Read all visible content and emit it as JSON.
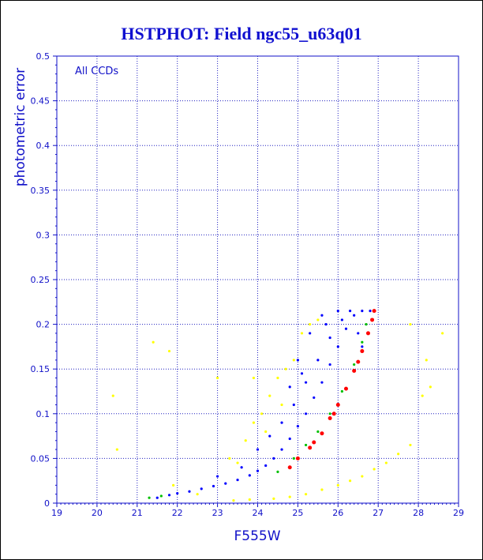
{
  "chart_data": {
    "type": "scatter",
    "title": "HSTPHOT: Field ngc55_u63q01",
    "xlabel": "F555W",
    "ylabel": "photometric error",
    "annotation": "All CCDs",
    "xlim": [
      19,
      29
    ],
    "ylim": [
      0,
      0.5
    ],
    "xticks": [
      19,
      20,
      21,
      22,
      23,
      24,
      25,
      26,
      27,
      28,
      29
    ],
    "yticks": [
      0,
      0.05,
      0.1,
      0.15,
      0.2,
      0.25,
      0.3,
      0.35,
      0.4,
      0.45,
      0.5
    ],
    "ytick_labels": [
      "0",
      "0.05",
      "0.1",
      "0.15",
      "0.2",
      "0.25",
      "0.3",
      "0.35",
      "0.4",
      "0.45",
      "0.5"
    ],
    "grid": true,
    "series": [
      {
        "color": "#0000ff",
        "points": [
          [
            21.5,
            0.006
          ],
          [
            21.8,
            0.009
          ],
          [
            22.0,
            0.011
          ],
          [
            22.3,
            0.013
          ],
          [
            22.6,
            0.016
          ],
          [
            22.9,
            0.019
          ],
          [
            23.2,
            0.022
          ],
          [
            23.5,
            0.026
          ],
          [
            23.8,
            0.031
          ],
          [
            24.0,
            0.036
          ],
          [
            24.2,
            0.042
          ],
          [
            24.4,
            0.05
          ],
          [
            24.6,
            0.06
          ],
          [
            24.8,
            0.072
          ],
          [
            25.0,
            0.086
          ],
          [
            25.2,
            0.1
          ],
          [
            25.4,
            0.118
          ],
          [
            25.6,
            0.135
          ],
          [
            25.8,
            0.155
          ],
          [
            26.0,
            0.175
          ],
          [
            26.2,
            0.195
          ],
          [
            26.4,
            0.21
          ],
          [
            26.6,
            0.215
          ],
          [
            26.8,
            0.215
          ],
          [
            24.0,
            0.06
          ],
          [
            24.3,
            0.075
          ],
          [
            24.6,
            0.09
          ],
          [
            24.9,
            0.11
          ],
          [
            25.2,
            0.135
          ],
          [
            25.5,
            0.16
          ],
          [
            25.8,
            0.185
          ],
          [
            26.1,
            0.205
          ],
          [
            25.0,
            0.16
          ],
          [
            25.3,
            0.19
          ],
          [
            25.6,
            0.21
          ],
          [
            26.0,
            0.215
          ],
          [
            26.3,
            0.215
          ],
          [
            23.0,
            0.03
          ],
          [
            23.6,
            0.04
          ],
          [
            24.8,
            0.13
          ],
          [
            25.1,
            0.145
          ],
          [
            25.7,
            0.2
          ],
          [
            26.5,
            0.19
          ],
          [
            26.6,
            0.175
          ]
        ]
      },
      {
        "color": "#ff0000",
        "points": [
          [
            24.8,
            0.04
          ],
          [
            25.0,
            0.05
          ],
          [
            25.3,
            0.062
          ],
          [
            25.6,
            0.078
          ],
          [
            25.8,
            0.095
          ],
          [
            26.0,
            0.11
          ],
          [
            26.2,
            0.128
          ],
          [
            26.4,
            0.148
          ],
          [
            26.6,
            0.17
          ],
          [
            26.75,
            0.19
          ],
          [
            26.85,
            0.205
          ],
          [
            26.9,
            0.215
          ],
          [
            25.4,
            0.068
          ],
          [
            25.9,
            0.1
          ],
          [
            26.5,
            0.158
          ]
        ]
      },
      {
        "color": "#00c000",
        "points": [
          [
            24.5,
            0.035
          ],
          [
            24.9,
            0.05
          ],
          [
            25.2,
            0.065
          ],
          [
            25.5,
            0.08
          ],
          [
            25.8,
            0.1
          ],
          [
            26.1,
            0.125
          ],
          [
            26.4,
            0.155
          ],
          [
            26.6,
            0.18
          ],
          [
            26.7,
            0.2
          ],
          [
            21.3,
            0.006
          ],
          [
            21.6,
            0.008
          ]
        ]
      },
      {
        "color": "#ffff00",
        "points": [
          [
            20.4,
            0.12
          ],
          [
            21.4,
            0.18
          ],
          [
            21.8,
            0.17
          ],
          [
            23.5,
            0.045
          ],
          [
            23.7,
            0.07
          ],
          [
            23.9,
            0.09
          ],
          [
            24.1,
            0.1
          ],
          [
            24.3,
            0.12
          ],
          [
            24.5,
            0.14
          ],
          [
            24.7,
            0.15
          ],
          [
            24.9,
            0.16
          ],
          [
            25.1,
            0.19
          ],
          [
            25.3,
            0.2
          ],
          [
            25.5,
            0.205
          ],
          [
            24.2,
            0.08
          ],
          [
            24.6,
            0.11
          ],
          [
            23.3,
            0.05
          ],
          [
            23.9,
            0.14
          ],
          [
            24.4,
            0.005
          ],
          [
            24.8,
            0.007
          ],
          [
            25.2,
            0.01
          ],
          [
            25.6,
            0.015
          ],
          [
            26.0,
            0.02
          ],
          [
            26.3,
            0.025
          ],
          [
            26.6,
            0.03
          ],
          [
            26.9,
            0.038
          ],
          [
            27.2,
            0.045
          ],
          [
            27.5,
            0.055
          ],
          [
            27.8,
            0.065
          ],
          [
            23.8,
            0.004
          ],
          [
            23.4,
            0.003
          ],
          [
            28.1,
            0.12
          ],
          [
            28.2,
            0.16
          ],
          [
            28.3,
            0.13
          ],
          [
            28.6,
            0.19
          ],
          [
            27.8,
            0.2
          ],
          [
            22.5,
            0.01
          ],
          [
            21.9,
            0.02
          ],
          [
            23.0,
            0.14
          ],
          [
            20.5,
            0.06
          ]
        ]
      }
    ]
  }
}
